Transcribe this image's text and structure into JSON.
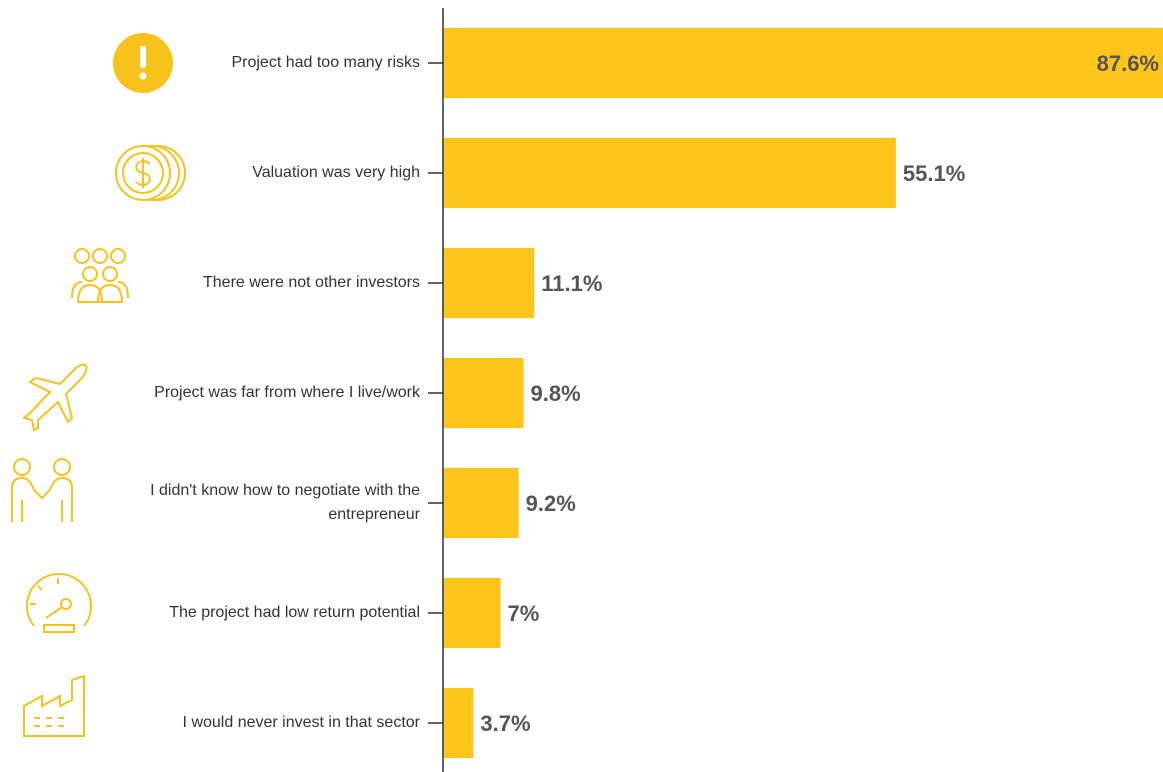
{
  "chart_data": {
    "type": "hbar",
    "categories": [
      "Project had too many risks",
      "Valuation was very high",
      "There were not other investors",
      "Project was far from where I live/work",
      "I didn't know how to negotiate with the entrepreneur",
      "The project had low return potential",
      "I would never invest in that sector"
    ],
    "values": [
      87.6,
      55.1,
      11.1,
      9.8,
      9.2,
      7,
      3.7
    ],
    "value_labels": [
      "87.6%",
      "55.1%",
      "11.1%",
      "9.8%",
      "9.2%",
      "7%",
      "3.7%"
    ],
    "color": "#fdc51a",
    "xlim": [
      0,
      87.6
    ]
  }
}
